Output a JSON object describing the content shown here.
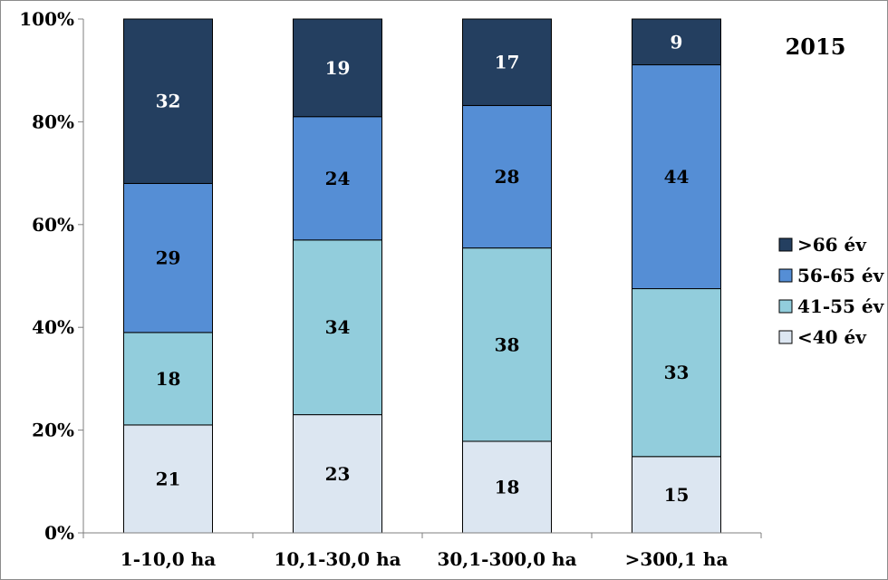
{
  "chart_data": {
    "type": "bar",
    "stacked": true,
    "percent_stacked": true,
    "title": "2015",
    "xlabel": "",
    "ylabel": "",
    "ylim": [
      0,
      100
    ],
    "y_ticks": [
      "0%",
      "20%",
      "40%",
      "60%",
      "80%",
      "100%"
    ],
    "categories": [
      "1-10,0 ha",
      "10,1-30,0 ha",
      "30,1-300,0 ha",
      ">300,1 ha"
    ],
    "series": [
      {
        "name": "<40 év",
        "values": [
          21,
          23,
          18,
          15
        ],
        "color": "#dce6f1",
        "label_color": "#000000"
      },
      {
        "name": "41-55 év",
        "values": [
          18,
          34,
          38,
          33
        ],
        "color": "#92cddc",
        "label_color": "#000000"
      },
      {
        "name": "56-65 év",
        "values": [
          29,
          24,
          28,
          44
        ],
        "color": "#558ed5",
        "label_color": "#000000"
      },
      {
        "name": ">66 év",
        "values": [
          32,
          19,
          17,
          9
        ],
        "color": "#243f60",
        "label_color": "#ffffff"
      }
    ],
    "legend": {
      "position": "right",
      "order": [
        ">66 év",
        "56-65 év",
        "41-55 év",
        "<40 év"
      ]
    },
    "grid": false
  }
}
